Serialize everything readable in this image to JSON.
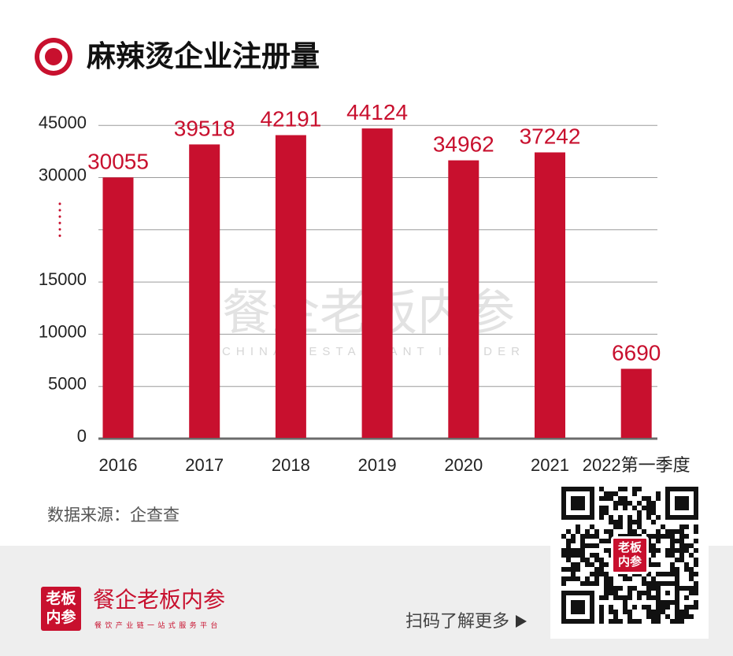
{
  "chart_data": {
    "type": "bar",
    "title": "麻辣烫企业注册量",
    "xlabel": "",
    "ylabel": "",
    "categories": [
      "2016",
      "2017",
      "2018",
      "2019",
      "2020",
      "2021",
      "2022第一季度"
    ],
    "values": [
      30055,
      39518,
      42191,
      44124,
      34962,
      37242,
      6690
    ],
    "yticks": [
      0,
      5000,
      10000,
      15000,
      null,
      30000,
      45000
    ],
    "ylim": [
      0,
      45000
    ],
    "y_axis_break": [
      15000,
      30000
    ],
    "grid": true,
    "data_labels": true
  },
  "header": {
    "icon": "target-circle-icon"
  },
  "watermark": {
    "cn": "餐企老板内参",
    "en": "CHINA RESTAURANT INSIDER"
  },
  "source": "数据来源：企查查",
  "footer": {
    "logo_icon": "laoban-neican-logo-icon",
    "logo_line1": "老板",
    "logo_line2": "内参",
    "brand_name": "餐企老板内参",
    "slogan": "餐饮产业链一站式服务平台",
    "scan_prompt": "扫码了解更多",
    "arrow_icon": "play-arrow-icon",
    "qr_icon": "qr-code-icon",
    "qr_logo_line1": "老板",
    "qr_logo_line2": "内参"
  },
  "colors": {
    "accent": "#c8102e",
    "grid": "#9b9b9b",
    "axis": "#6b6b6b",
    "footer_bg": "#eeeeee",
    "watermark": "#e2e2e2",
    "tick_text": "#222222"
  }
}
